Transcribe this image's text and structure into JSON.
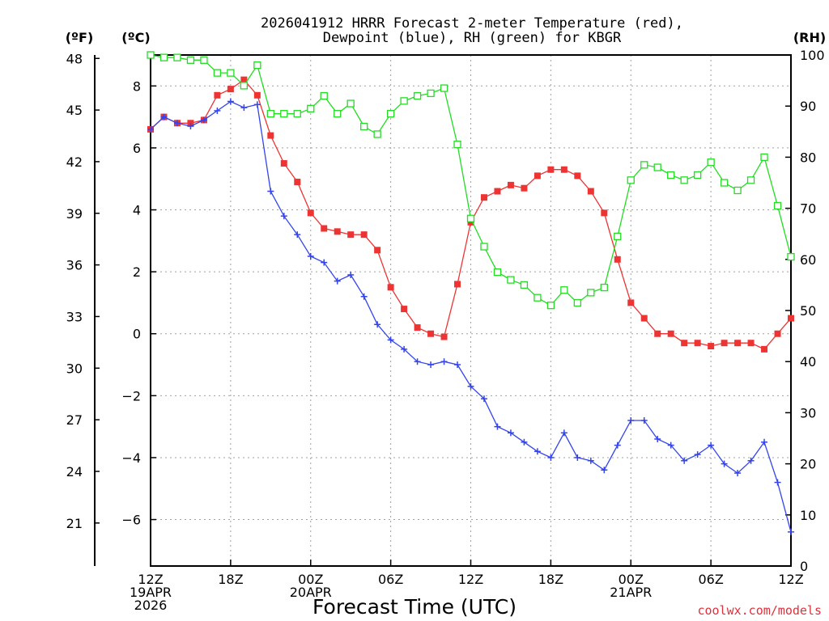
{
  "chart_data": {
    "type": "line",
    "title_lines": [
      "2026041912 HRRR Forecast 2-meter Temperature (red),",
      "Dewpoint (blue), RH (green) for KBGR"
    ],
    "xlabel": "Forecast Time (UTC)",
    "credit": "coolwx.com/models",
    "units": {
      "fahrenheit": "(ºF)",
      "celsius": "(ºC)",
      "rh": "(RH)"
    },
    "axes": {
      "celsius": {
        "range": [
          -7.5,
          9.0
        ],
        "ticks": [
          "8",
          "6",
          "4",
          "2",
          "0",
          "−2",
          "−4",
          "−6"
        ],
        "tick_values": [
          8,
          6,
          4,
          2,
          0,
          -2,
          -4,
          -6
        ]
      },
      "fahrenheit": {
        "ticks": [
          "48",
          "45",
          "42",
          "39",
          "36",
          "33",
          "30",
          "27",
          "24",
          "21"
        ],
        "tick_values": [
          48,
          45,
          42,
          39,
          36,
          33,
          30,
          27,
          24,
          21
        ]
      },
      "rh": {
        "range": [
          0,
          100
        ],
        "ticks": [
          "100",
          "90",
          "80",
          "70",
          "60",
          "50",
          "40",
          "30",
          "20",
          "10",
          "0"
        ],
        "tick_values": [
          100,
          90,
          80,
          70,
          60,
          50,
          40,
          30,
          20,
          10,
          0
        ]
      },
      "x": {
        "range": [
          0,
          48
        ],
        "ticks": [
          {
            "hour": 0,
            "lines": [
              "12Z",
              "19APR",
              "2026"
            ]
          },
          {
            "hour": 6,
            "lines": [
              "18Z"
            ]
          },
          {
            "hour": 12,
            "lines": [
              "00Z",
              "20APR"
            ]
          },
          {
            "hour": 18,
            "lines": [
              "06Z"
            ]
          },
          {
            "hour": 24,
            "lines": [
              "12Z"
            ]
          },
          {
            "hour": 30,
            "lines": [
              "18Z"
            ]
          },
          {
            "hour": 36,
            "lines": [
              "00Z",
              "21APR"
            ]
          },
          {
            "hour": 42,
            "lines": [
              "06Z"
            ]
          },
          {
            "hour": 48,
            "lines": [
              "12Z"
            ]
          }
        ]
      }
    },
    "x_hours": [
      0,
      1,
      2,
      3,
      4,
      5,
      6,
      7,
      8,
      9,
      10,
      11,
      12,
      13,
      14,
      15,
      16,
      17,
      18,
      19,
      20,
      21,
      22,
      23,
      24,
      25,
      26,
      27,
      28,
      29,
      30,
      31,
      32,
      33,
      34,
      35,
      36,
      37,
      38,
      39,
      40,
      41,
      42,
      43,
      44,
      45,
      46,
      47,
      48
    ],
    "series": [
      {
        "name": "2-meter Temperature",
        "axis": "celsius",
        "color": "#ee3333",
        "marker": "filled-square",
        "values": [
          6.6,
          7.0,
          6.8,
          6.8,
          6.9,
          7.7,
          7.9,
          8.2,
          7.7,
          6.4,
          5.5,
          4.9,
          3.9,
          3.4,
          3.3,
          3.2,
          3.2,
          2.7,
          1.5,
          0.8,
          0.2,
          0.0,
          -0.1,
          1.6,
          3.6,
          4.4,
          4.6,
          4.8,
          4.7,
          5.1,
          5.3,
          5.3,
          5.1,
          4.6,
          3.9,
          2.4,
          1.0,
          0.5,
          0.0,
          0.0,
          -0.3,
          -0.3,
          -0.4,
          -0.3,
          -0.3,
          -0.3,
          -0.5,
          0.0,
          0.5
        ]
      },
      {
        "name": "Dewpoint",
        "axis": "celsius",
        "color": "#3344ee",
        "marker": "plus",
        "values": [
          6.6,
          7.0,
          6.8,
          6.7,
          6.9,
          7.2,
          7.5,
          7.3,
          7.4,
          4.6,
          3.8,
          3.2,
          2.5,
          2.3,
          1.7,
          1.9,
          1.2,
          0.3,
          -0.2,
          -0.5,
          -0.9,
          -1.0,
          -0.9,
          -1.0,
          -1.7,
          -2.1,
          -3.0,
          -3.2,
          -3.5,
          -3.8,
          -4.0,
          -3.2,
          -4.0,
          -4.1,
          -4.4,
          -3.6,
          -2.8,
          -2.8,
          -3.4,
          -3.6,
          -4.1,
          -3.9,
          -3.6,
          -4.2,
          -4.5,
          -4.1,
          -3.5,
          -4.8,
          -6.4
        ]
      },
      {
        "name": "RH",
        "axis": "rh",
        "color": "#22dd22",
        "marker": "open-square",
        "values": [
          100,
          99.5,
          99.5,
          99,
          99,
          96.5,
          96.5,
          94,
          98,
          88.5,
          88.5,
          88.5,
          89.5,
          92,
          88.5,
          90.5,
          86,
          84.5,
          88.5,
          91,
          92,
          92.5,
          93.5,
          82.5,
          68,
          62.5,
          57.5,
          56,
          55,
          52.5,
          51,
          54,
          51.5,
          53.5,
          54.5,
          64.5,
          75.5,
          78.5,
          78,
          76.5,
          75.5,
          76.5,
          79,
          75,
          73.5,
          75.5,
          80,
          70.5,
          60.5
        ]
      }
    ]
  }
}
